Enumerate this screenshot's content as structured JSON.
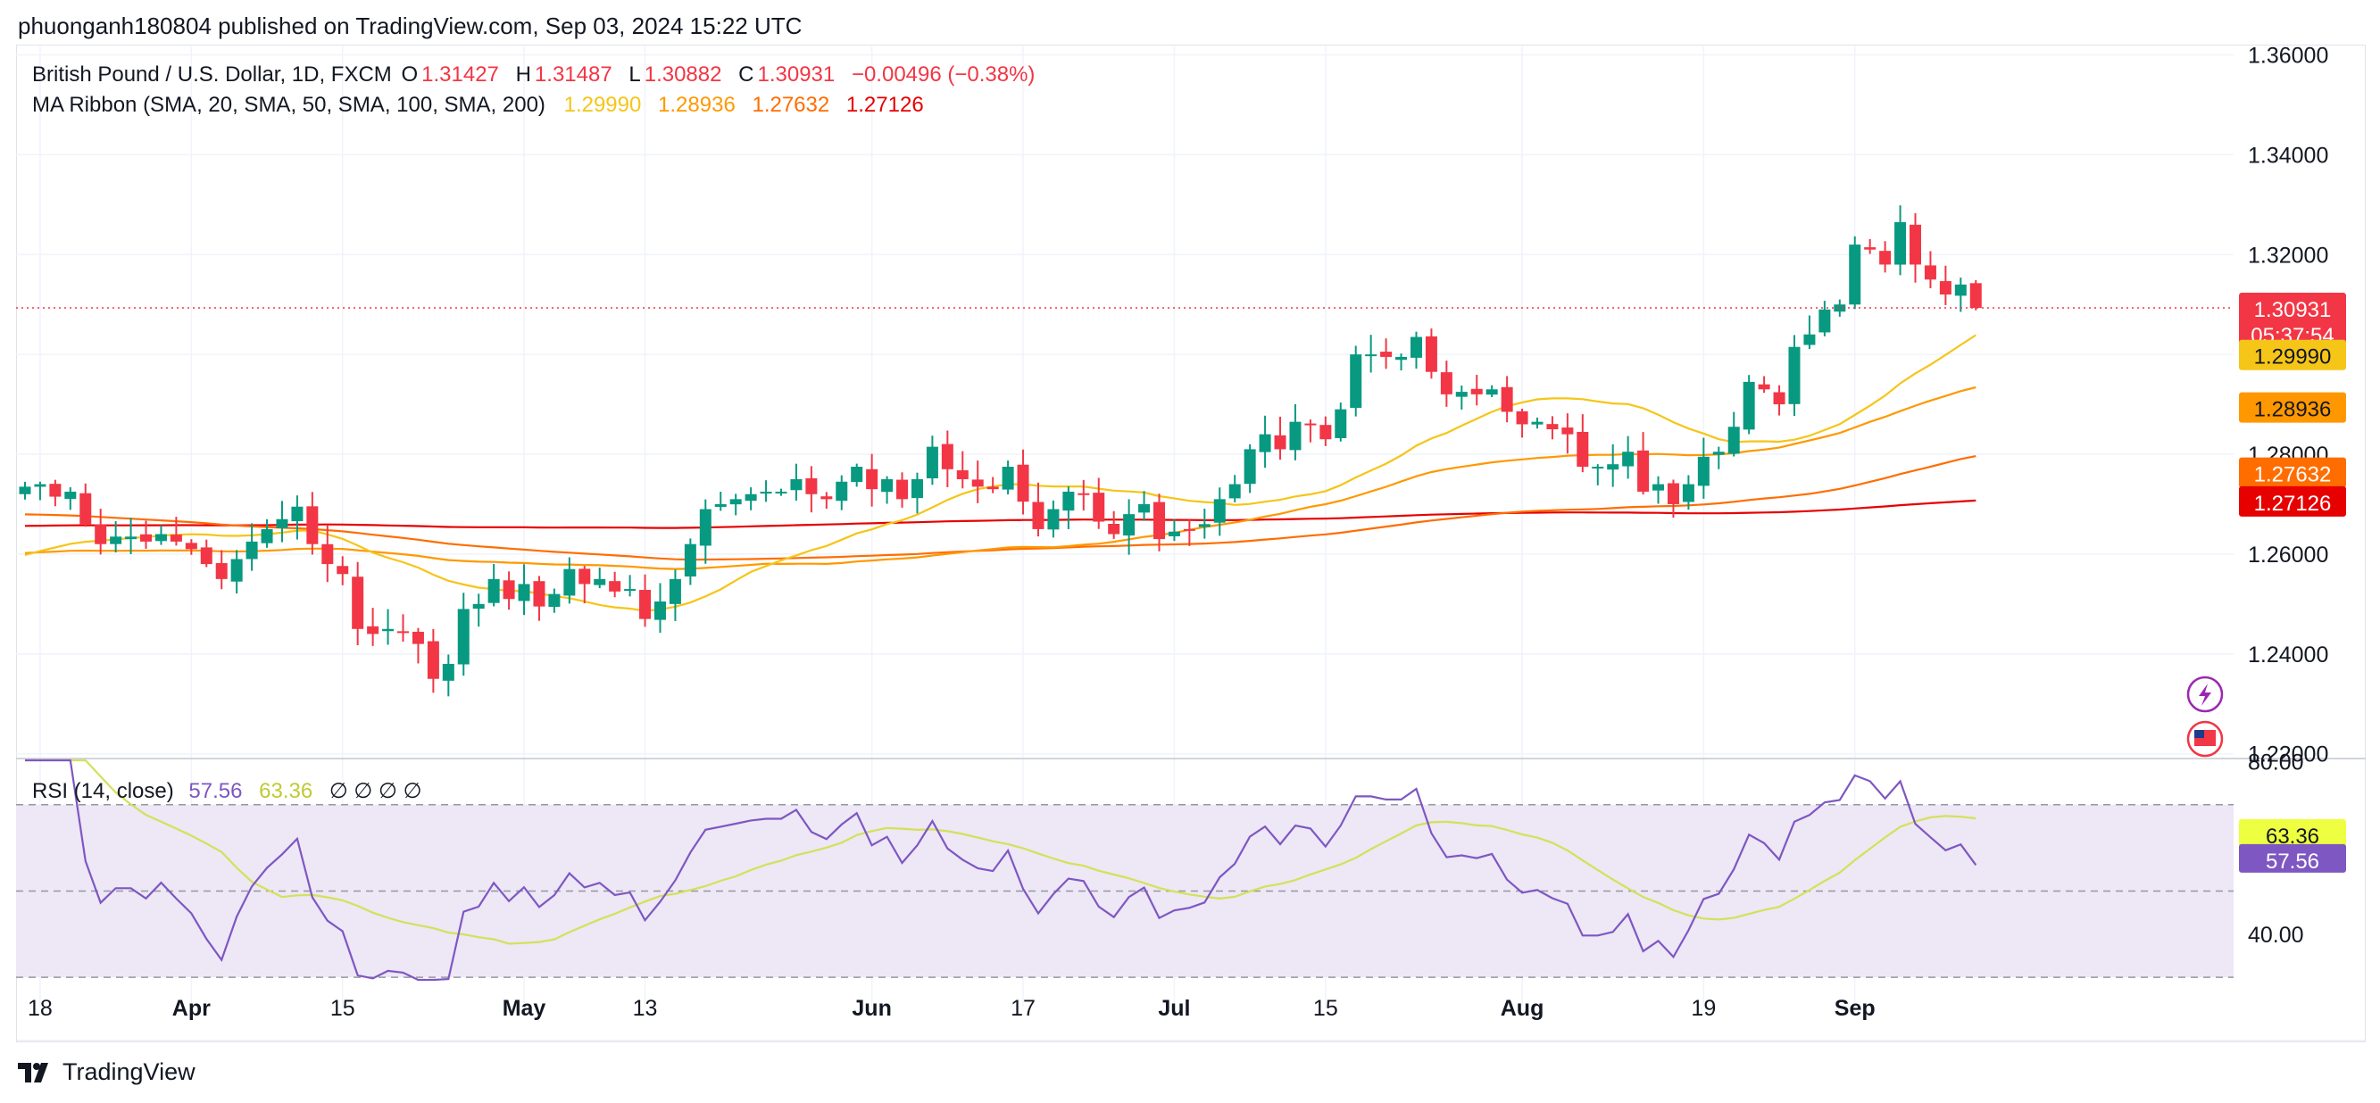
{
  "header": {
    "published": "phuonganh180804 published on TradingView.com, Sep 03, 2024 15:22 UTC"
  },
  "legend": {
    "symbol": "British Pound / U.S. Dollar, 1D, FXCM",
    "o_label": "O",
    "o_value": "1.31427",
    "h_label": "H",
    "h_value": "1.31487",
    "l_label": "L",
    "l_value": "1.30882",
    "c_label": "C",
    "c_value": "1.30931",
    "change": "−0.00496 (−0.38%)",
    "ma_title": "MA Ribbon (SMA, 20, SMA, 50, SMA, 100, SMA, 200)",
    "ma_values": [
      "1.29990",
      "1.28936",
      "1.27632",
      "1.27126"
    ],
    "rsi_title": "RSI (14, close)",
    "rsi_value": "57.56",
    "rsi_ma_value": "63.36",
    "rsi_extra": "∅ ∅ ∅ ∅"
  },
  "footer": {
    "brand": "TradingView"
  },
  "colors": {
    "up": "#089981",
    "down": "#f23645",
    "ma20": "#f5c518",
    "ma50": "#ff9800",
    "ma100": "#ff6d00",
    "ma200": "#e60000",
    "rsi": "#7e57c2",
    "rsi_ma": "#d4e157",
    "rsi_band": "#ede7f6"
  },
  "chart_data": [
    {
      "type": "candlestick",
      "symbol": "GBPUSD",
      "timeframe": "1D",
      "y_ticks": [
        "1.22000",
        "1.24000",
        "1.26000",
        "1.28000",
        "1.30000",
        "1.32000",
        "1.34000",
        "1.36000"
      ],
      "ylim": [
        1.2194,
        1.3617
      ],
      "x_ticks": [
        {
          "label": "18",
          "date": "2024-03-18"
        },
        {
          "label": "Apr",
          "date": "2024-04-01"
        },
        {
          "label": "15",
          "date": "2024-04-15"
        },
        {
          "label": "May",
          "date": "2024-05-01"
        },
        {
          "label": "13",
          "date": "2024-05-13"
        },
        {
          "label": "Jun",
          "date": "2024-06-03"
        },
        {
          "label": "17",
          "date": "2024-06-17"
        },
        {
          "label": "Jul",
          "date": "2024-07-01"
        },
        {
          "label": "15",
          "date": "2024-07-15"
        },
        {
          "label": "Aug",
          "date": "2024-08-01"
        },
        {
          "label": "19",
          "date": "2024-08-19"
        },
        {
          "label": "Sep",
          "date": "2024-09-02"
        }
      ],
      "last_price": "1.30931",
      "countdown": "05:37:54",
      "closes": [
        1.2735,
        1.274,
        1.2715,
        1.2725,
        1.266,
        1.262,
        1.2635,
        1.2635,
        1.2625,
        1.264,
        1.2625,
        1.261,
        1.258,
        1.255,
        1.259,
        1.2625,
        1.265,
        1.267,
        1.2695,
        1.262,
        1.258,
        1.256,
        1.245,
        1.244,
        1.245,
        1.2445,
        1.242,
        1.235,
        1.238,
        1.249,
        1.25,
        1.255,
        1.251,
        1.254,
        1.2495,
        1.252,
        1.257,
        1.254,
        1.255,
        1.2525,
        1.253,
        1.247,
        1.2505,
        1.255,
        1.262,
        1.269,
        1.27,
        1.271,
        1.272,
        1.2725,
        1.2725,
        1.275,
        1.272,
        1.271,
        1.2745,
        1.2775,
        1.273,
        1.275,
        1.271,
        1.275,
        1.2815,
        1.277,
        1.275,
        1.2735,
        1.273,
        1.2775,
        1.2705,
        1.265,
        1.269,
        1.2725,
        1.272,
        1.2665,
        1.264,
        1.268,
        1.27,
        1.263,
        1.2645,
        1.265,
        1.266,
        1.271,
        1.274,
        1.281,
        1.284,
        1.281,
        1.2865,
        1.286,
        1.283,
        1.289,
        1.3,
        1.3,
        1.2995,
        1.2995,
        1.3035,
        1.2965,
        1.292,
        1.2925,
        1.292,
        1.293,
        1.2885,
        1.286,
        1.2865,
        1.285,
        1.284,
        1.2775,
        1.2775,
        1.278,
        1.2805,
        1.2725,
        1.274,
        1.27,
        1.274,
        1.2795,
        1.2805,
        1.2855,
        1.2945,
        1.293,
        1.29,
        1.3015,
        1.304,
        1.309,
        1.31,
        1.322,
        1.321,
        1.318,
        1.3265,
        1.318,
        1.315,
        1.312,
        1.314,
        1.3093
      ],
      "ma_ribbon": [
        {
          "name": "SMA 20",
          "last": "1.29990"
        },
        {
          "name": "SMA 50",
          "last": "1.28936"
        },
        {
          "name": "SMA 100",
          "last": "1.27632"
        },
        {
          "name": "SMA 200",
          "last": "1.27126"
        }
      ]
    },
    {
      "type": "line",
      "title": "RSI (14, close)",
      "y_ticks": [
        "40.00",
        "80.00"
      ],
      "ylim": [
        29.4,
        80.3
      ],
      "bands": [
        30,
        50,
        70
      ],
      "series": [
        {
          "name": "RSI",
          "last": "57.56"
        },
        {
          "name": "RSI-based MA",
          "last": "63.36"
        }
      ]
    }
  ]
}
